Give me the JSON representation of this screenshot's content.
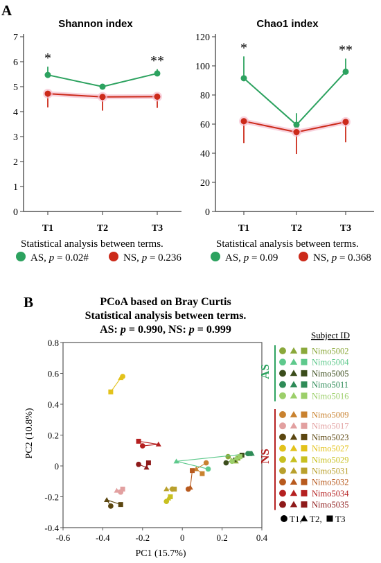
{
  "colors": {
    "AS": "#2ca25f",
    "NS": "#cc2a1a"
  },
  "panel_A": {
    "label": "A"
  },
  "panel_B": {
    "label": "B",
    "title_lines": [
      "PCoA based on Bray Curtis",
      "Statistical analysis between terms."
    ],
    "stats_line": {
      "as_prefix": "AS: ",
      "p": "p",
      "as_val": " = 0.990, NS: ",
      "ns_val": " = 0.999"
    }
  },
  "chart_data": [
    {
      "type": "line",
      "title": "Shannon index",
      "categories": [
        "T1",
        "T2",
        "T3"
      ],
      "ylim": [
        0,
        7
      ],
      "yticks": [
        "0",
        "1",
        "2",
        "3",
        "4",
        "5",
        "6",
        "7"
      ],
      "series": [
        {
          "name": "AS",
          "values": [
            5.47,
            5.0,
            5.53
          ],
          "errors_up": [
            0.33,
            0,
            0.17
          ],
          "errors_down": [
            0,
            0,
            0
          ]
        },
        {
          "name": "NS",
          "values": [
            4.72,
            4.59,
            4.6
          ],
          "errors_up": [
            0,
            0,
            0
          ],
          "errors_down": [
            0.55,
            0.55,
            0.45
          ]
        }
      ],
      "annotations": [
        {
          "category": "T1",
          "text": "*"
        },
        {
          "category": "T3",
          "text": "**"
        }
      ],
      "stats_title": "Statistical analysis between terms.",
      "legend": [
        {
          "series": "AS",
          "prefix": "AS, ",
          "p": "p",
          "value": " = 0.02#"
        },
        {
          "series": "NS",
          "prefix": "NS, ",
          "p": "p",
          "value": " = 0.236"
        }
      ]
    },
    {
      "type": "line",
      "title": "Chao1 index",
      "categories": [
        "T1",
        "T2",
        "T3"
      ],
      "ylim": [
        0,
        120
      ],
      "yticks": [
        "0",
        "20",
        "40",
        "60",
        "80",
        "100",
        "120"
      ],
      "series": [
        {
          "name": "AS",
          "values": [
            91.5,
            59.5,
            96.0
          ],
          "errors_up": [
            15,
            8,
            9
          ],
          "errors_down": [
            0,
            0,
            0
          ]
        },
        {
          "name": "NS",
          "values": [
            62.0,
            54.5,
            61.5
          ],
          "errors_up": [
            0,
            0,
            0
          ],
          "errors_down": [
            15,
            15,
            14
          ]
        }
      ],
      "annotations": [
        {
          "category": "T1",
          "text": "*"
        },
        {
          "category": "T3",
          "text": "**"
        }
      ],
      "stats_title": "Statistical analysis between terms.",
      "legend": [
        {
          "series": "AS",
          "prefix": "AS, ",
          "p": "p",
          "value": " = 0.09"
        },
        {
          "series": "NS",
          "prefix": "NS, ",
          "p": "p",
          "value": " = 0.368"
        }
      ]
    },
    {
      "type": "scatter",
      "xlabel": "PC1 (15.7%)",
      "ylabel": "PC2 (10.8%)",
      "xlim": [
        -0.6,
        0.4
      ],
      "ylim": [
        -0.4,
        0.8
      ],
      "xticks": [
        "-0.6",
        "-0.4",
        "-0.2",
        "0",
        "0.2",
        "0.4"
      ],
      "yticks": [
        "-0.4",
        "-0.2",
        "0",
        "0.2",
        "0.4",
        "0.6",
        "0.8"
      ],
      "legend_title": "Subject ID",
      "group_labels": {
        "AS": "AS",
        "NS": "NS"
      },
      "marker_legend": [
        {
          "shape": "circle",
          "label": "T1"
        },
        {
          "shape": "triangle",
          "label": "T2"
        },
        {
          "shape": "square",
          "label": "T3"
        }
      ],
      "subjects": [
        {
          "id": "Nimo5002",
          "group": "AS",
          "color": "#8aa83a",
          "points": [
            [
              0.23,
              0.06
            ],
            [
              0.27,
              0.03
            ],
            [
              0.28,
              0.05
            ]
          ]
        },
        {
          "id": "Nimo5004",
          "group": "AS",
          "color": "#5ec98c",
          "points": [
            [
              0.13,
              -0.02
            ],
            [
              -0.03,
              0.03
            ],
            [
              0.34,
              0.08
            ]
          ]
        },
        {
          "id": "Nimo5005",
          "group": "AS",
          "color": "#3b4d1c",
          "points": [
            [
              0.22,
              0.02
            ],
            [
              0.26,
              0.04
            ],
            [
              0.3,
              0.07
            ]
          ]
        },
        {
          "id": "Nimo5011",
          "group": "AS",
          "color": "#2e8b57",
          "points": [
            [
              0.33,
              0.08
            ],
            [
              0.35,
              0.08
            ],
            [
              0.34,
              0.08
            ]
          ]
        },
        {
          "id": "Nimo5016",
          "group": "AS",
          "color": "#9ccf6a",
          "points": [
            [
              0.25,
              0.03
            ],
            [
              0.27,
              0.05
            ],
            [
              0.29,
              0.06
            ]
          ]
        },
        {
          "id": "Nimo5009",
          "group": "NS",
          "color": "#c9822f",
          "points": [
            [
              0.12,
              0.02
            ],
            [
              0.07,
              -0.02
            ],
            [
              0.1,
              -0.05
            ]
          ]
        },
        {
          "id": "Nimo5017",
          "group": "NS",
          "color": "#e2a0a0",
          "points": [
            [
              -0.31,
              -0.17
            ],
            [
              -0.33,
              -0.16
            ],
            [
              -0.3,
              -0.15
            ]
          ]
        },
        {
          "id": "Nimo5023",
          "group": "NS",
          "color": "#5b4610",
          "points": [
            [
              -0.36,
              -0.26
            ],
            [
              -0.38,
              -0.22
            ],
            [
              -0.31,
              -0.25
            ]
          ]
        },
        {
          "id": "Nimo5027",
          "group": "NS",
          "color": "#e3c21b",
          "points": [
            [
              -0.3,
              0.58
            ],
            [
              -0.31,
              0.57
            ],
            [
              -0.36,
              0.48
            ]
          ]
        },
        {
          "id": "Nimo5029",
          "group": "NS",
          "color": "#c8c020",
          "points": [
            [
              -0.08,
              -0.23
            ],
            [
              -0.07,
              -0.21
            ],
            [
              -0.06,
              -0.2
            ]
          ]
        },
        {
          "id": "Nimo5031",
          "group": "NS",
          "color": "#b9a02c",
          "points": [
            [
              -0.05,
              -0.15
            ],
            [
              -0.08,
              -0.15
            ],
            [
              -0.04,
              -0.15
            ]
          ]
        },
        {
          "id": "Nimo5032",
          "group": "NS",
          "color": "#b85a1e",
          "points": [
            [
              0.03,
              -0.15
            ],
            [
              0.04,
              -0.14
            ],
            [
              0.05,
              -0.03
            ]
          ]
        },
        {
          "id": "Nimo5034",
          "group": "NS",
          "color": "#b52020",
          "points": [
            [
              -0.2,
              0.13
            ],
            [
              -0.12,
              0.14
            ],
            [
              -0.22,
              0.16
            ]
          ]
        },
        {
          "id": "Nimo5035",
          "group": "NS",
          "color": "#8e1a1a",
          "points": [
            [
              -0.22,
              0.01
            ],
            [
              -0.18,
              -0.01
            ],
            [
              -0.17,
              0.02
            ]
          ]
        }
      ]
    }
  ]
}
